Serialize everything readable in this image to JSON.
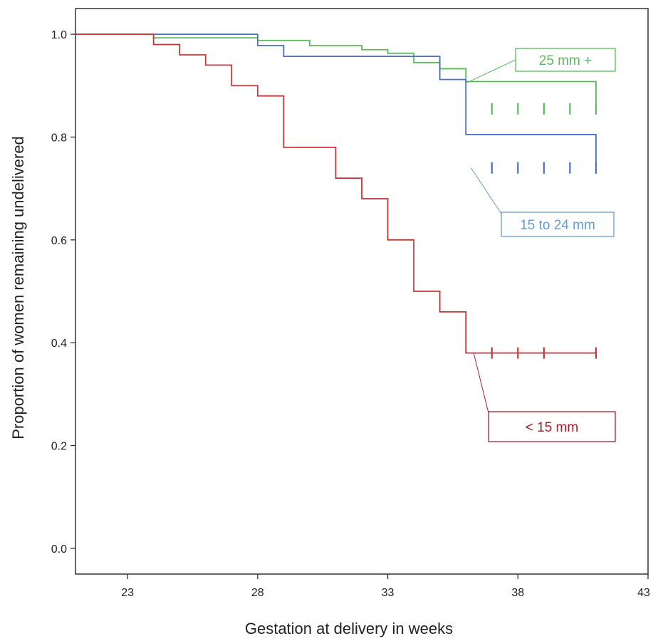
{
  "chart_data": {
    "type": "line",
    "step": true,
    "xlabel": "Gestation at delivery in weeks",
    "ylabel": "Proportion of women remaining undelivered",
    "xlim": [
      21,
      43
    ],
    "ylim": [
      -0.05,
      1.05
    ],
    "xticks": [
      23,
      28,
      33,
      38,
      43
    ],
    "yticks": [
      0.0,
      0.2,
      0.4,
      0.6,
      0.8,
      1.0
    ],
    "xtick_labels": [
      "23",
      "28",
      "33",
      "38",
      "43"
    ],
    "ytick_labels": [
      "0.0",
      "0.2",
      "0.4",
      "0.6",
      "0.8",
      "1.0"
    ],
    "grid": false,
    "series": [
      {
        "name": "25 mm +",
        "color": "#5cb85c",
        "x": [
          21,
          24,
          28,
          30,
          32,
          33,
          34,
          35,
          36,
          41
        ],
        "y": [
          1.0,
          0.993,
          0.988,
          0.978,
          0.97,
          0.963,
          0.945,
          0.933,
          0.908,
          0.855
        ],
        "censored": [
          37,
          38,
          39,
          40,
          41
        ],
        "censored_y": 0.855
      },
      {
        "name": "15 to 24 mm",
        "color": "#4a6fc4",
        "x": [
          21,
          24,
          28,
          29,
          34,
          35,
          36,
          41
        ],
        "y": [
          1.0,
          1.0,
          0.978,
          0.957,
          0.957,
          0.912,
          0.805,
          0.74
        ],
        "censored": [
          37,
          38,
          39,
          40,
          41
        ],
        "censored_y": 0.74
      },
      {
        "name": "< 15 mm",
        "color": "#c0393b",
        "x": [
          21,
          24,
          25,
          26,
          27,
          28,
          29,
          31,
          32,
          33,
          34,
          35,
          36,
          41
        ],
        "y": [
          1.0,
          0.98,
          0.96,
          0.94,
          0.9,
          0.88,
          0.78,
          0.72,
          0.68,
          0.6,
          0.5,
          0.46,
          0.38,
          0.38
        ],
        "censored": [
          37,
          38,
          39,
          41
        ],
        "censored_y": 0.38
      }
    ],
    "annotations": [
      {
        "text": "25 mm +",
        "color": "#5cb85c",
        "series": 0,
        "anchor_x": 36,
        "anchor_y": 0.905
      },
      {
        "text": "15 to 24 mm",
        "color": "#6a9bd1",
        "series": 1,
        "anchor_x": 36.2,
        "anchor_y": 0.74
      },
      {
        "text": "< 15 mm",
        "color": "#a8202a",
        "series": 2,
        "anchor_x": 36.3,
        "anchor_y": 0.38
      }
    ]
  }
}
